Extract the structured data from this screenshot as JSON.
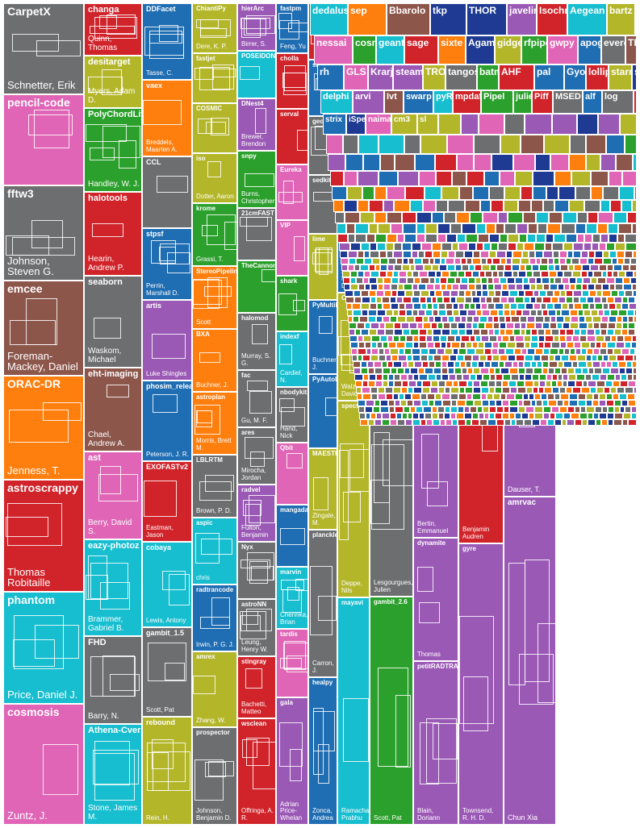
{
  "chart_data": {
    "type": "treemap",
    "title": "",
    "palette": {
      "gray": "#6d6e70",
      "red": "#d1232a",
      "blue": "#1f6db2",
      "olive": "#b4b62a",
      "pink": "#e065b6",
      "brown": "#8c564b",
      "orange": "#ff7f0e",
      "purple": "#9b59b6",
      "cyan": "#17becf",
      "green": "#2ca02c",
      "navy": "#1f3a93"
    },
    "columns": [
      {
        "tiles": [
          {
            "name": "CarpetX",
            "authors": "Schnetter, Erik",
            "value": 110,
            "color": "gray"
          },
          {
            "name": "pencil-code",
            "authors": "",
            "value": 110,
            "color": "pink"
          },
          {
            "name": "fftw3",
            "authors": "Johnson, Steven G.",
            "value": 115,
            "color": "gray"
          },
          {
            "name": "emcee",
            "authors": "Foreman-Mackey, Daniel",
            "value": 115,
            "color": "brown"
          },
          {
            "name": "ORAC-DR",
            "authors": "Jenness, T.",
            "value": 125,
            "color": "orange"
          },
          {
            "name": "astroscrappy",
            "authors": "Thomas Robitaille",
            "value": 135,
            "color": "red"
          },
          {
            "name": "phantom",
            "authors": "Price, Daniel J.",
            "value": 135,
            "color": "cyan"
          },
          {
            "name": "cosmosis",
            "authors": "Zuntz, J.",
            "value": 145,
            "color": "pink"
          }
        ]
      },
      {
        "tiles": [
          {
            "name": "changa",
            "authors": "Quinn, Thomas",
            "value": 60,
            "color": "red"
          },
          {
            "name": "desitarget",
            "authors": "Myers, Adam D.",
            "value": 60,
            "color": "olive"
          },
          {
            "name": "PolyChordLite",
            "authors": "Handley, W. J.",
            "value": 95,
            "color": "green"
          },
          {
            "name": "halotools",
            "authors": "Hearin, Andrew P.",
            "value": 95,
            "color": "red"
          },
          {
            "name": "seaborn",
            "authors": "Waskom, Michael",
            "value": 105,
            "color": "gray"
          },
          {
            "name": "eht-imaging",
            "authors": "Chael, Andrew A.",
            "value": 95,
            "color": "brown"
          },
          {
            "name": "ast",
            "authors": "Berry, David S.",
            "value": 100,
            "color": "pink"
          },
          {
            "name": "eazy-photoz",
            "authors": "Brammer, Gabriel B.",
            "value": 110,
            "color": "cyan"
          },
          {
            "name": "FHD",
            "authors": "Barry, N.",
            "value": 100,
            "color": "gray"
          },
          {
            "name": "Athena-Cversion",
            "authors": "Stone, James M.",
            "value": 115,
            "color": "cyan"
          }
        ]
      },
      {
        "tiles": [
          {
            "name": "DDFacet",
            "authors": "Tasse, C.",
            "value": 85,
            "color": "blue"
          },
          {
            "name": "vaex",
            "authors": "Breddels, Maarten A.",
            "value": 85,
            "color": "orange"
          },
          {
            "name": "CCL",
            "authors": "",
            "value": 80,
            "color": "gray"
          },
          {
            "name": "stpsf",
            "authors": "Perrin, Marshall D.",
            "value": 80,
            "color": "blue"
          },
          {
            "name": "artis",
            "authors": "Luke Shingles",
            "value": 90,
            "color": "purple"
          },
          {
            "name": "phosim_release",
            "authors": "Peterson, J. R.",
            "value": 90,
            "color": "blue"
          },
          {
            "name": "EXOFASTv2",
            "authors": "Eastman, Jason",
            "value": 90,
            "color": "red"
          },
          {
            "name": "cobaya",
            "authors": "Lewis, Antony",
            "value": 95,
            "color": "cyan"
          },
          {
            "name": "gambit_1.5",
            "authors": "Scott, Pat",
            "value": 100,
            "color": "gray"
          },
          {
            "name": "rebound",
            "authors": "Rein, H.",
            "value": 120,
            "color": "olive"
          }
        ]
      },
      {
        "tiles": [
          {
            "name": "ChiantiPy",
            "authors": "Dere, K. P.",
            "value": 60,
            "color": "olive"
          },
          {
            "name": "fastjet",
            "authors": "",
            "value": 60,
            "color": "olive"
          },
          {
            "name": "COSMIC",
            "authors": "",
            "value": 60,
            "color": "olive"
          },
          {
            "name": "iso",
            "authors": "Dotter, Aaron",
            "value": 60,
            "color": "olive"
          },
          {
            "name": "krome",
            "authors": "Grassi, T.",
            "value": 75,
            "color": "green"
          },
          {
            "name": "StereoPipeline",
            "authors": "Scott",
            "value": 75,
            "color": "orange"
          },
          {
            "name": "BXA",
            "authors": "Buchner, J.",
            "value": 75,
            "color": "orange"
          },
          {
            "name": "astroplan",
            "authors": "Morris, Brett M.",
            "value": 75,
            "color": "orange"
          },
          {
            "name": "LBLRTM",
            "authors": "Brown, P. D.",
            "value": 75,
            "color": "gray"
          },
          {
            "name": "aspic",
            "authors": "chris",
            "value": 80,
            "color": "cyan"
          },
          {
            "name": "radtrancode",
            "authors": "Irwin, P. G. J.",
            "value": 80,
            "color": "blue"
          },
          {
            "name": "amrex",
            "authors": "Zhang, W.",
            "value": 90,
            "color": "olive"
          },
          {
            "name": "prospector",
            "authors": "Johnson, Benjamin D.",
            "value": 115,
            "color": "gray"
          }
        ]
      },
      {
        "tiles": [
          {
            "name": "hierArc",
            "authors": "Birrer, S.",
            "value": 50,
            "color": "purple"
          },
          {
            "name": "POSEIDON",
            "authors": "",
            "value": 50,
            "color": "cyan"
          },
          {
            "name": "DNest4",
            "authors": "Brewer, Brendon",
            "value": 55,
            "color": "purple"
          },
          {
            "name": "snpy",
            "authors": "Burns, Christopher",
            "value": 60,
            "color": "green"
          },
          {
            "name": "21cmFAST",
            "authors": "",
            "value": 55,
            "color": "gray"
          },
          {
            "name": "TheCannon",
            "authors": "",
            "value": 55,
            "color": "green"
          },
          {
            "name": "halomod",
            "authors": "Murray, S. G.",
            "value": 60,
            "color": "gray"
          },
          {
            "name": "fac",
            "authors": "Gu, M. F.",
            "value": 60,
            "color": "gray"
          },
          {
            "name": "ares",
            "authors": "Mirocha, Jordan",
            "value": 60,
            "color": "gray"
          },
          {
            "name": "radvel",
            "authors": "Fulton, Benjamin",
            "value": 60,
            "color": "purple"
          },
          {
            "name": "Nyx",
            "authors": "",
            "value": 60,
            "color": "gray"
          },
          {
            "name": "astroNN",
            "authors": "Leung, Henry W.",
            "value": 60,
            "color": "gray"
          },
          {
            "name": "stingray",
            "authors": "Bachetti, Matteo",
            "value": 65,
            "color": "red"
          },
          {
            "name": "wsclean",
            "authors": "Offringa, A. R.",
            "value": 110,
            "color": "red"
          }
        ]
      },
      {
        "tiles": [
          {
            "name": "fastpm",
            "authors": "Feng, Yu",
            "value": 40,
            "color": "blue"
          },
          {
            "name": "cholla",
            "authors": "",
            "value": 45,
            "color": "red"
          },
          {
            "name": "serval",
            "authors": "",
            "value": 45,
            "color": "red"
          },
          {
            "name": "Eureka",
            "authors": "",
            "value": 45,
            "color": "pink"
          },
          {
            "name": "VIP",
            "authors": "",
            "value": 45,
            "color": "pink"
          },
          {
            "name": "shark",
            "authors": "",
            "value": 45,
            "color": "green"
          },
          {
            "name": "indexf",
            "authors": "Cardiel, N.",
            "value": 45,
            "color": "cyan"
          },
          {
            "name": "nbodykit",
            "authors": "Hand, Nick",
            "value": 45,
            "color": "gray"
          },
          {
            "name": "Qbit",
            "authors": "",
            "value": 50,
            "color": "pink"
          },
          {
            "name": "mangadap",
            "authors": "",
            "value": 50,
            "color": "blue"
          },
          {
            "name": "marvin",
            "authors": "Cherinka, Brian",
            "value": 50,
            "color": "cyan"
          },
          {
            "name": "tardis",
            "authors": "",
            "value": 55,
            "color": "pink"
          },
          {
            "name": "gala",
            "authors": "Adrian Price-Whelan",
            "value": 100,
            "color": "purple"
          }
        ]
      },
      {
        "tiles": [
          {
            "name": "tkp",
            "authors": "",
            "value": 38,
            "color": "red"
          },
          {
            "name": "sbpy",
            "authors": "",
            "value": 38,
            "color": "blue"
          },
          {
            "name": "george",
            "authors": "",
            "value": 40,
            "color": "gray"
          },
          {
            "name": "sedkit",
            "authors": "",
            "value": 40,
            "color": "gray"
          },
          {
            "name": "lime",
            "authors": "",
            "value": 45,
            "color": "olive"
          },
          {
            "name": "PyMultiNest",
            "authors": "Buchner, J.",
            "value": 50,
            "color": "blue"
          },
          {
            "name": "PyAutoLens",
            "authors": "",
            "value": 50,
            "color": "blue"
          },
          {
            "name": "MAESTRO",
            "authors": "Zingale, M.",
            "value": 55,
            "color": "olive"
          },
          {
            "name": "plancklens",
            "authors": "Carron, J.",
            "value": 100,
            "color": "gray"
          },
          {
            "name": "healpy",
            "authors": "Zonca, Andrea",
            "value": 100,
            "color": "blue"
          }
        ]
      },
      {
        "tiles": [
          {
            "name": "cfitsio",
            "authors": "",
            "value": 42,
            "color": "gray"
          },
          {
            "name": "hmf",
            "authors": "Murray, S. G.",
            "value": 50,
            "color": "green"
          },
          {
            "name": "corner.py",
            "authors": "Foreman-Mackey, Daniel",
            "value": 55,
            "color": "blue"
          },
          {
            "name": "CRPropa3",
            "authors": "Walz, David",
            "value": 55,
            "color": "olive"
          },
          {
            "name": "spectre",
            "authors": "Deppe, Nils",
            "value": 100,
            "color": "olive"
          },
          {
            "name": "mayavi",
            "authors": "Ramachandran, Prabhu",
            "value": 115,
            "color": "cyan"
          }
        ]
      },
      {
        "tiles": [
          {
            "name": "PynPoint",
            "authors": "Stolker, T.",
            "value": 60,
            "color": "gray"
          },
          {
            "name": "vplanet",
            "authors": "Barnes, Rory",
            "value": 60,
            "color": "gray"
          },
          {
            "name": "aoflagger",
            "authors": "Offringa, A. R.",
            "value": 80,
            "color": "purple"
          },
          {
            "name": "hi_class_public",
            "authors": "Lesgourgues, Julien",
            "value": 100,
            "color": "gray"
          },
          {
            "name": "gambit_2.6",
            "authors": "Scott, Pat",
            "value": 115,
            "color": "green"
          }
        ]
      },
      {
        "tiles": [
          {
            "name": "spheral",
            "authors": "",
            "value": 60,
            "color": "olive"
          },
          {
            "name": "celerite",
            "authors": "Foreman-Mackey, Daniel",
            "value": 60,
            "color": "orange"
          },
          {
            "name": "music",
            "authors": "Hahn, Oliver",
            "value": 80,
            "color": "purple"
          },
          {
            "name": "swarp",
            "authors": "Bertin, Emmanuel",
            "value": 60,
            "color": "purple"
          },
          {
            "name": "dynamite",
            "authors": "Thomas",
            "value": 60,
            "color": "purple"
          },
          {
            "name": "petitRADTRANS",
            "authors": "Blain, Doriann",
            "value": 80,
            "color": "purple"
          }
        ]
      },
      {
        "tiles": [
          {
            "name": "marxs",
            "authors": "Günther, Hans Moritz",
            "value": 60,
            "color": "red"
          },
          {
            "name": "MOSFiT",
            "authors": "Guillochon, James",
            "value": 60,
            "color": "pink"
          },
          {
            "name": "montepython_public",
            "authors": "Benjamin Audren",
            "value": 100,
            "color": "red"
          },
          {
            "name": "gyre",
            "authors": "Townsend, R. H. D.",
            "value": 115,
            "color": "purple"
          }
        ]
      },
      {
        "tiles": [
          {
            "name": "cjam",
            "authors": "Watkins, Laura L.",
            "value": 60,
            "color": "purple"
          },
          {
            "name": "relxill",
            "authors": "Dauser, T.",
            "value": 60,
            "color": "purple"
          },
          {
            "name": "amrvac",
            "authors": "Chun Xia",
            "value": 80,
            "color": "purple"
          }
        ]
      }
    ],
    "top_right_small_labels": [
      "dedalus",
      "sep",
      "Bbarolo",
      "tkp",
      "THOR",
      "javelin",
      "Isochrones",
      "Aegean",
      "bartz",
      "sbpy",
      "nessai",
      "cosmic",
      "geant4",
      "sage",
      "sixte",
      "Agama",
      "gidget",
      "rfpipe",
      "gwpy",
      "apogee",
      "everest",
      "TRINITY",
      "rh",
      "GLS",
      "Krarje",
      "steamba",
      "TROVE",
      "tangos",
      "batman",
      "AHF",
      "pal",
      "Gyoto",
      "lollipop",
      "starry",
      "sunpy",
      "delphi",
      "arvi",
      "Ivt",
      "swarp",
      "pyRSD",
      "mpdaf",
      "Pipel",
      "juliet",
      "Piff",
      "MSED",
      "alf",
      "log",
      "serval",
      "strix",
      "iSpec",
      "naima",
      "cm3",
      "sl"
    ]
  }
}
